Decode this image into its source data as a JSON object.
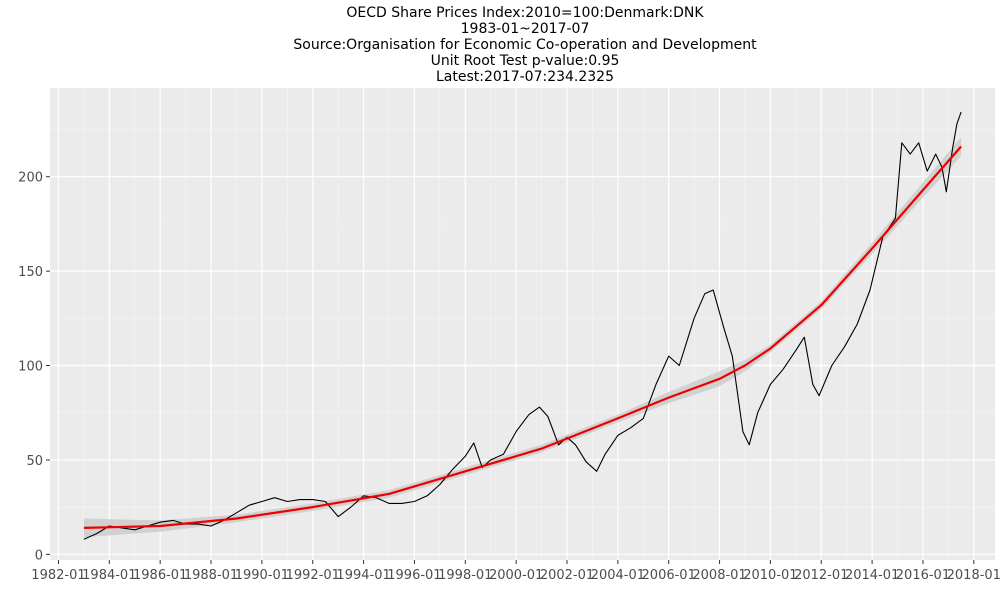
{
  "chart_data": {
    "type": "line",
    "title_lines": [
      "OECD Share Prices Index:2010=100:Denmark:DNK",
      "1983-01~2017-07",
      "Source:Organisation for Economic Co-operation and Development",
      "Unit Root Test p-value:0.95",
      "Latest:2017-07:234.2325"
    ],
    "xlabel": "",
    "ylabel": "",
    "x_ticks": [
      "1982-01",
      "1984-01",
      "1986-01",
      "1988-01",
      "1990-01",
      "1992-01",
      "1994-01",
      "1996-01",
      "1998-01",
      "2000-01",
      "2002-01",
      "2004-01",
      "2006-01",
      "2008-01",
      "2010-01",
      "2012-01",
      "2014-01",
      "2016-01",
      "2018-01"
    ],
    "y_ticks": [
      0,
      50,
      100,
      150,
      200
    ],
    "xlim": [
      "1981-09",
      "2018-11"
    ],
    "ylim": [
      -3,
      247
    ],
    "grid": true,
    "background": "#ebebeb",
    "series": [
      {
        "color": "#000000",
        "points": [
          [
            "1983-01",
            8
          ],
          [
            "1983-07",
            11
          ],
          [
            "1984-01",
            15
          ],
          [
            "1984-07",
            14
          ],
          [
            "1985-01",
            13
          ],
          [
            "1985-07",
            15
          ],
          [
            "1986-01",
            17
          ],
          [
            "1986-07",
            18
          ],
          [
            "1987-01",
            16
          ],
          [
            "1987-07",
            16
          ],
          [
            "1988-01",
            15
          ],
          [
            "1988-07",
            18
          ],
          [
            "1989-01",
            22
          ],
          [
            "1989-07",
            26
          ],
          [
            "1990-01",
            28
          ],
          [
            "1990-07",
            30
          ],
          [
            "1991-01",
            28
          ],
          [
            "1991-07",
            29
          ],
          [
            "1992-01",
            29
          ],
          [
            "1992-07",
            28
          ],
          [
            "1993-01",
            20
          ],
          [
            "1993-07",
            25
          ],
          [
            "1994-01",
            31
          ],
          [
            "1994-07",
            30
          ],
          [
            "1995-01",
            27
          ],
          [
            "1995-07",
            27
          ],
          [
            "1996-01",
            28
          ],
          [
            "1996-07",
            31
          ],
          [
            "1997-01",
            37
          ],
          [
            "1997-07",
            45
          ],
          [
            "1998-01",
            52
          ],
          [
            "1998-05",
            59
          ],
          [
            "1998-09",
            46
          ],
          [
            "1999-01",
            50
          ],
          [
            "1999-07",
            53
          ],
          [
            "2000-01",
            65
          ],
          [
            "2000-07",
            74
          ],
          [
            "2000-12",
            78
          ],
          [
            "2001-04",
            73
          ],
          [
            "2001-09",
            58
          ],
          [
            "2002-01",
            62
          ],
          [
            "2002-05",
            58
          ],
          [
            "2002-10",
            49
          ],
          [
            "2003-03",
            44
          ],
          [
            "2003-07",
            53
          ],
          [
            "2004-01",
            63
          ],
          [
            "2004-07",
            67
          ],
          [
            "2005-01",
            72
          ],
          [
            "2005-07",
            90
          ],
          [
            "2006-01",
            105
          ],
          [
            "2006-06",
            100
          ],
          [
            "2007-01",
            125
          ],
          [
            "2007-06",
            138
          ],
          [
            "2007-10",
            140
          ],
          [
            "2008-03",
            120
          ],
          [
            "2008-07",
            105
          ],
          [
            "2008-12",
            65
          ],
          [
            "2009-03",
            58
          ],
          [
            "2009-07",
            75
          ],
          [
            "2010-01",
            90
          ],
          [
            "2010-07",
            98
          ],
          [
            "2011-01",
            108
          ],
          [
            "2011-05",
            115
          ],
          [
            "2011-09",
            90
          ],
          [
            "2011-12",
            84
          ],
          [
            "2012-06",
            100
          ],
          [
            "2012-12",
            110
          ],
          [
            "2013-06",
            122
          ],
          [
            "2013-12",
            140
          ],
          [
            "2014-06",
            168
          ],
          [
            "2014-12",
            178
          ],
          [
            "2015-03",
            218
          ],
          [
            "2015-07",
            212
          ],
          [
            "2015-11",
            218
          ],
          [
            "2016-03",
            203
          ],
          [
            "2016-07",
            212
          ],
          [
            "2016-10",
            205
          ],
          [
            "2016-12",
            192
          ],
          [
            "2017-03",
            215
          ],
          [
            "2017-05",
            228
          ],
          [
            "2017-07",
            234.2325
          ]
        ]
      },
      {
        "color": "#ee0000",
        "band_color": "#cccccc",
        "points": [
          [
            "1983-01",
            14,
            9,
            19
          ],
          [
            "1986-01",
            15,
            12,
            18
          ],
          [
            "1989-01",
            19,
            17,
            21
          ],
          [
            "1992-01",
            25,
            23,
            27
          ],
          [
            "1995-01",
            32,
            30,
            34
          ],
          [
            "1998-01",
            44,
            42,
            46
          ],
          [
            "2001-01",
            56,
            54,
            58
          ],
          [
            "2004-01",
            72,
            70,
            74
          ],
          [
            "2006-01",
            83,
            80,
            86
          ],
          [
            "2008-01",
            93,
            89,
            97
          ],
          [
            "2009-01",
            100,
            97,
            103
          ],
          [
            "2010-01",
            109,
            107,
            111
          ],
          [
            "2012-01",
            132,
            130,
            134
          ],
          [
            "2014-01",
            162,
            159,
            165
          ],
          [
            "2016-01",
            193,
            189,
            197
          ],
          [
            "2017-07",
            216,
            211,
            221
          ]
        ]
      }
    ]
  }
}
